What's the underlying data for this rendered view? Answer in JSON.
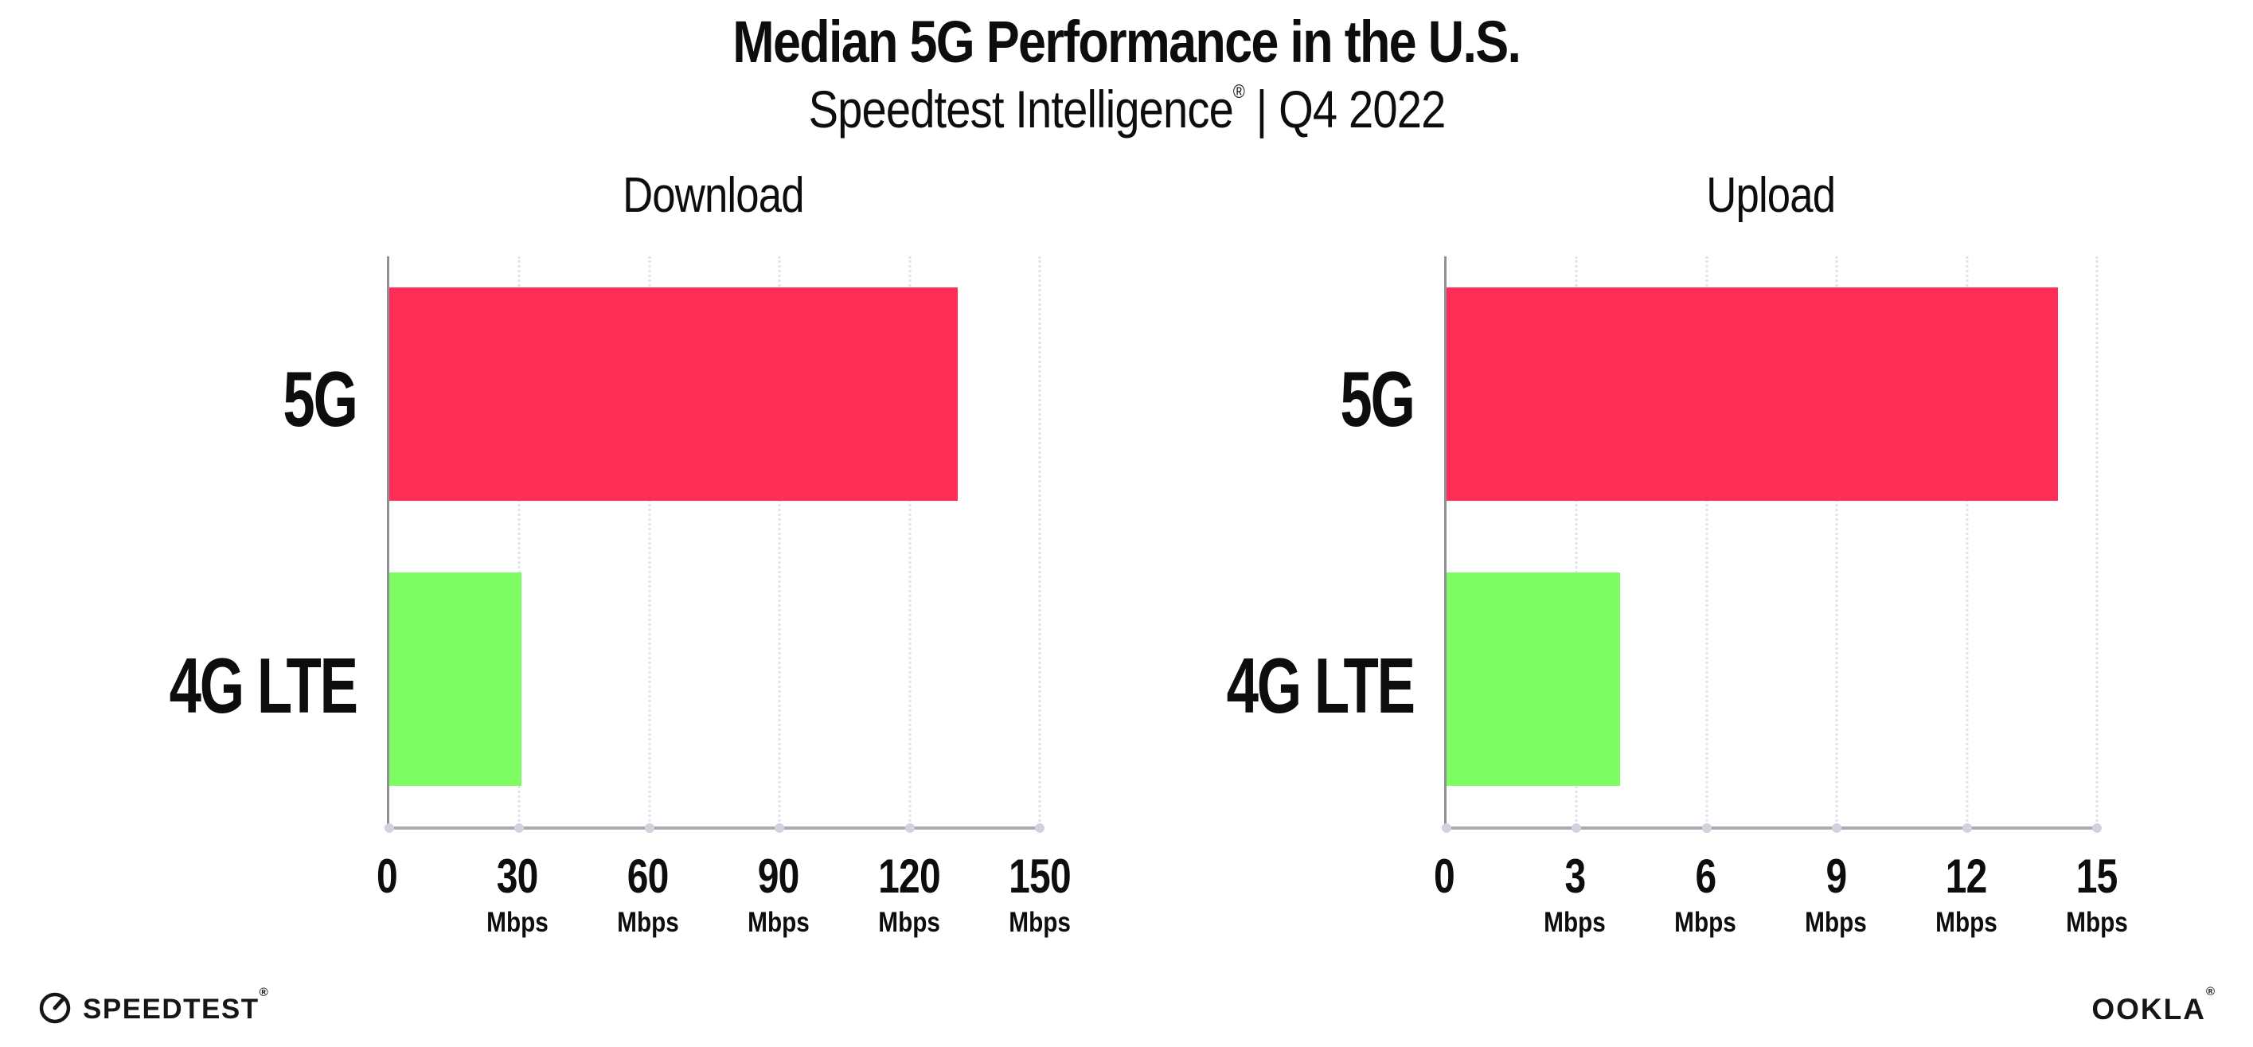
{
  "header": {
    "title": "Median 5G Performance in the U.S.",
    "subtitle_brand": "Speedtest Intelligence",
    "subtitle_reg": "®",
    "subtitle_period": " | Q4 2022"
  },
  "chart_data": [
    {
      "type": "bar",
      "orientation": "horizontal",
      "title": "Download",
      "categories": [
        "5G",
        "4G LTE"
      ],
      "values": [
        131,
        30.4
      ],
      "unit": "Mbps",
      "xlim": [
        0,
        150
      ],
      "xticks": [
        0,
        30,
        60,
        90,
        120,
        150
      ],
      "grid": "vertical-dotted",
      "legend": "none",
      "series_colors": [
        "#ff2e57",
        "#7dfc63"
      ]
    },
    {
      "type": "bar",
      "orientation": "horizontal",
      "title": "Upload",
      "categories": [
        "5G",
        "4G LTE"
      ],
      "values": [
        14.1,
        4.0
      ],
      "unit": "Mbps",
      "xlim": [
        0,
        15
      ],
      "xticks": [
        0,
        3,
        6,
        9,
        12,
        15
      ],
      "grid": "vertical-dotted",
      "legend": "none",
      "series_colors": [
        "#ff2e57",
        "#7dfc63"
      ]
    }
  ],
  "colors": {
    "bar_5g": "#ff2e57",
    "bar_4g_lte": "#7dfc63",
    "axis_line": "#ababb2",
    "gridline": "#e2e2ee",
    "text": "#0d0d0d"
  },
  "footer": {
    "speedtest_logo_text": "SPEEDTEST",
    "speedtest_reg": "®",
    "ookla_logo_text": "OOKLA",
    "ookla_reg": "®"
  }
}
